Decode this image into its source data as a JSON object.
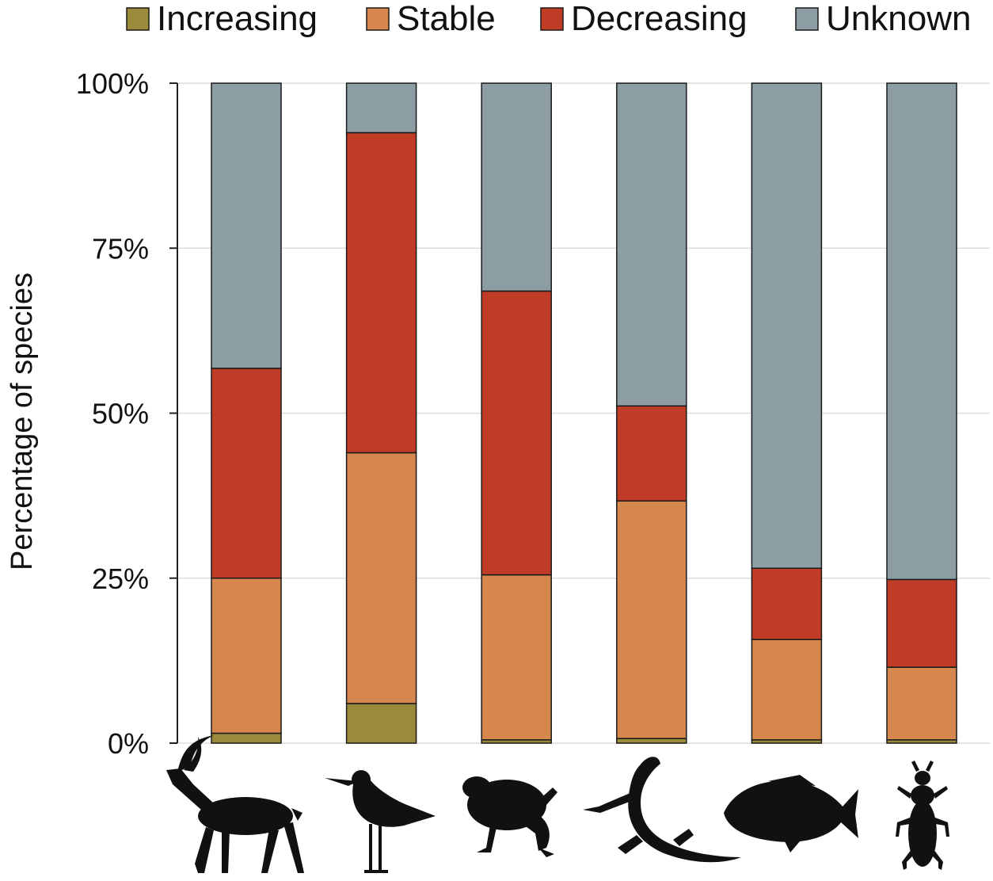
{
  "chart_data": {
    "type": "bar",
    "stacked": true,
    "percent": true,
    "ylabel": "Percentage of species",
    "ylim": [
      0,
      100
    ],
    "yticks": [
      0,
      25,
      50,
      75,
      100
    ],
    "ytick_labels": [
      "0%",
      "25%",
      "50%",
      "75%",
      "100%"
    ],
    "grid": true,
    "legend_position": "top",
    "categories": [
      "antelope-icon",
      "shorebird-icon",
      "frog-icon",
      "lizard-icon",
      "fish-icon",
      "beetle-icon"
    ],
    "series": [
      {
        "name": "Increasing",
        "color": "#9b8a3a",
        "values": [
          1.5,
          6.0,
          0.5,
          0.7,
          0.5,
          0.5
        ]
      },
      {
        "name": "Stable",
        "color": "#d5874e",
        "values": [
          23.5,
          38.0,
          25.0,
          36.0,
          15.2,
          11.0
        ]
      },
      {
        "name": "Decreasing",
        "color": "#c13c27",
        "values": [
          31.8,
          48.5,
          43.0,
          14.4,
          10.8,
          13.3
        ]
      },
      {
        "name": "Unknown",
        "color": "#8c9da4",
        "values": [
          43.2,
          7.5,
          31.5,
          48.9,
          73.5,
          75.2
        ]
      }
    ]
  }
}
